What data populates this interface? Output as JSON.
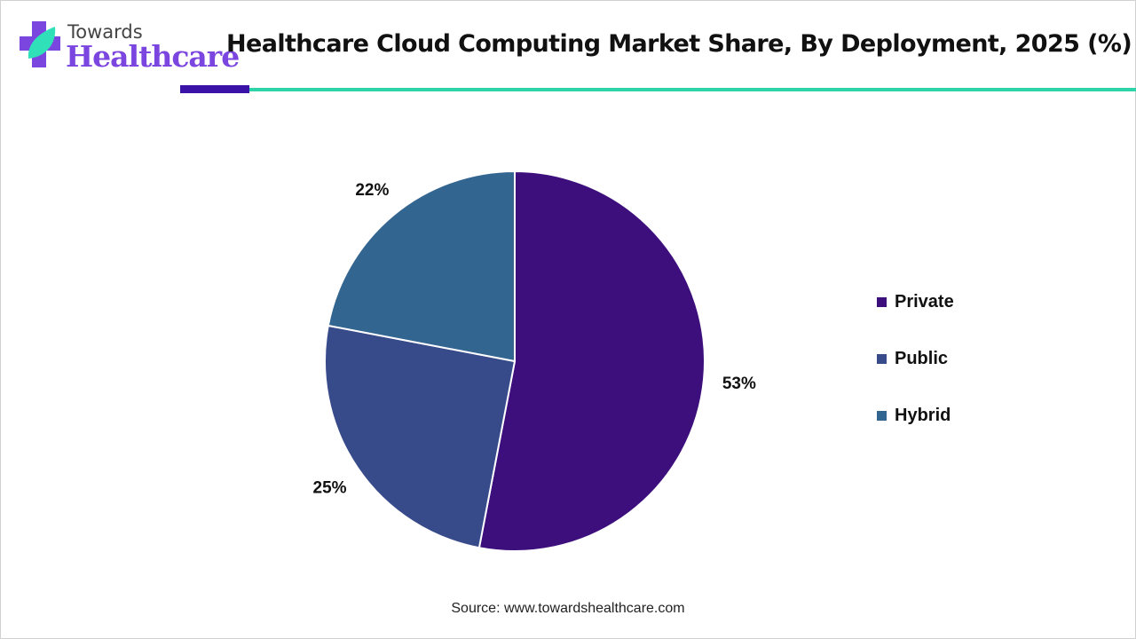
{
  "logo": {
    "line1": "Towards",
    "line2": "Healthcare"
  },
  "chart_data": {
    "type": "pie",
    "title": "Healthcare Cloud Computing Market Share, By Deployment, 2025 (%)",
    "categories": [
      "Private",
      "Public",
      "Hybrid"
    ],
    "values": [
      53,
      25,
      22
    ],
    "labels": [
      "53%",
      "25%",
      "22%"
    ],
    "colors": [
      "#3d0f7c",
      "#374a8a",
      "#336591"
    ],
    "start": "top, clockwise",
    "legend_position": "right"
  },
  "source": "Source: www.towardshealthcare.com"
}
